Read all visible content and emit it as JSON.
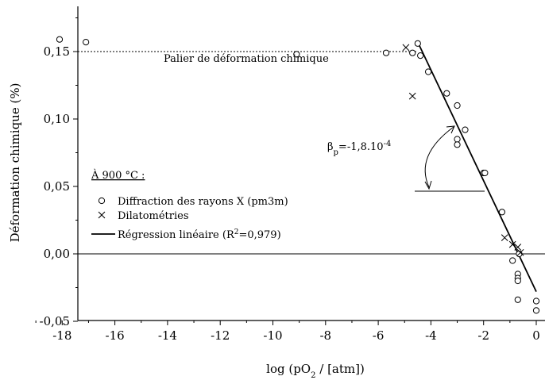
{
  "chart_data": {
    "type": "scatter",
    "xlabel": {
      "main": "log (pO",
      "sub": "2",
      "tail": " / [atm])"
    },
    "ylabel": "Déformation chimique (%)",
    "xlim": [
      -19,
      1
    ],
    "ylim": [
      -0.05,
      0.18
    ],
    "x_ticks": [
      -18,
      -16,
      -14,
      -12,
      -10,
      -8,
      -6,
      -4,
      -2,
      0
    ],
    "x_tick_labels": [
      "-18",
      "-16",
      "-14",
      "-12",
      "-10",
      "-8",
      "-6",
      "-4",
      "-2",
      "0"
    ],
    "y_ticks": [
      -0.05,
      0.0,
      0.05,
      0.1,
      0.15
    ],
    "y_tick_labels": [
      "-0,05",
      "0,00",
      "0,05",
      "0,10",
      "0,15"
    ],
    "grid": false,
    "legend_position": "left",
    "legend": {
      "title": "À 900 °C :",
      "entries": [
        {
          "label": "Diffraction des rayons X (pm3m)",
          "marker": "circle"
        },
        {
          "label": "Dilatométries",
          "marker": "cross"
        },
        {
          "label_main": "Régression linéaire (R",
          "label_sup": "2",
          "label_tail": "=0,979)",
          "marker": "line"
        }
      ]
    },
    "series": [
      {
        "name": "Diffraction des rayons X (pm3m)",
        "marker": "circle",
        "points": [
          [
            -18.1,
            0.159
          ],
          [
            -17.1,
            0.157
          ],
          [
            -9.1,
            0.148
          ],
          [
            -5.7,
            0.149
          ],
          [
            -4.7,
            0.149
          ],
          [
            -4.5,
            0.156
          ],
          [
            -4.4,
            0.147
          ],
          [
            -4.1,
            0.135
          ],
          [
            -3.4,
            0.119
          ],
          [
            -3.0,
            0.11
          ],
          [
            -2.7,
            0.092
          ],
          [
            -3.0,
            0.085
          ],
          [
            -3.0,
            0.081
          ],
          [
            -2.0,
            0.06
          ],
          [
            -1.95,
            0.06
          ],
          [
            -1.3,
            0.031
          ],
          [
            -0.9,
            -0.005
          ],
          [
            -0.65,
            0.0
          ],
          [
            -0.7,
            -0.015
          ],
          [
            -0.7,
            -0.018
          ],
          [
            -0.7,
            -0.02
          ],
          [
            -0.7,
            -0.034
          ],
          [
            0.0,
            -0.035
          ],
          [
            0.0,
            -0.042
          ]
        ]
      },
      {
        "name": "Dilatométries",
        "marker": "cross",
        "points": [
          [
            -4.95,
            0.153
          ],
          [
            -4.7,
            0.117
          ],
          [
            -1.2,
            0.012
          ],
          [
            -0.9,
            0.007
          ],
          [
            -0.7,
            0.005
          ],
          [
            -0.6,
            0.001
          ]
        ]
      },
      {
        "name": "Régression linéaire (R²=0,979)",
        "marker": "line",
        "points": [
          [
            -4.5,
            0.157
          ],
          [
            0.0,
            -0.028
          ]
        ]
      }
    ],
    "reference_lines": [
      {
        "y": 0.15,
        "style": "dotted",
        "x_range": [
          -19,
          -4.5
        ]
      },
      {
        "y": 0.0,
        "style": "solid",
        "x_range": [
          -19,
          1
        ]
      }
    ],
    "annotations": {
      "plateau": "Palier de déformation chimique",
      "beta_main": "β",
      "beta_sub": "p",
      "beta_value": "=-1,8.10",
      "beta_exp": "-4"
    }
  }
}
